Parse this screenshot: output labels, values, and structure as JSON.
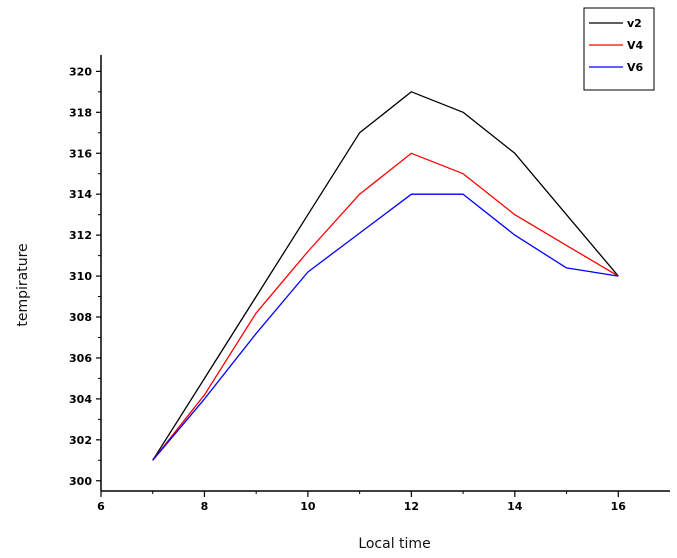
{
  "chart_data": {
    "type": "line",
    "title": "",
    "xlabel": "Local time",
    "ylabel": "tempirature",
    "xlim": [
      6,
      17
    ],
    "ylim": [
      299.5,
      320.8
    ],
    "xticks": [
      6,
      8,
      10,
      12,
      14,
      16
    ],
    "yticks": [
      300,
      302,
      304,
      306,
      308,
      310,
      312,
      314,
      316,
      318,
      320
    ],
    "grid": false,
    "legend_position": "top-right",
    "series": [
      {
        "name": "v2",
        "color": "#000000",
        "x": [
          7,
          8,
          9,
          10,
          11,
          12,
          13,
          14,
          15,
          16
        ],
        "y": [
          301,
          305,
          309,
          313,
          317,
          319,
          318,
          316,
          313,
          310
        ]
      },
      {
        "name": "V4",
        "color": "#ff0000",
        "x": [
          7,
          8,
          9,
          10,
          11,
          12,
          13,
          14,
          15,
          16
        ],
        "y": [
          301,
          304.2,
          308.2,
          311.2,
          314,
          316,
          315,
          313,
          311.5,
          310
        ]
      },
      {
        "name": "V6",
        "color": "#0000ff",
        "x": [
          7,
          8,
          9,
          10,
          11,
          12,
          13,
          14,
          15,
          16
        ],
        "y": [
          301,
          304,
          307.2,
          310.2,
          312.1,
          314,
          314,
          312,
          310.4,
          310
        ]
      }
    ]
  }
}
